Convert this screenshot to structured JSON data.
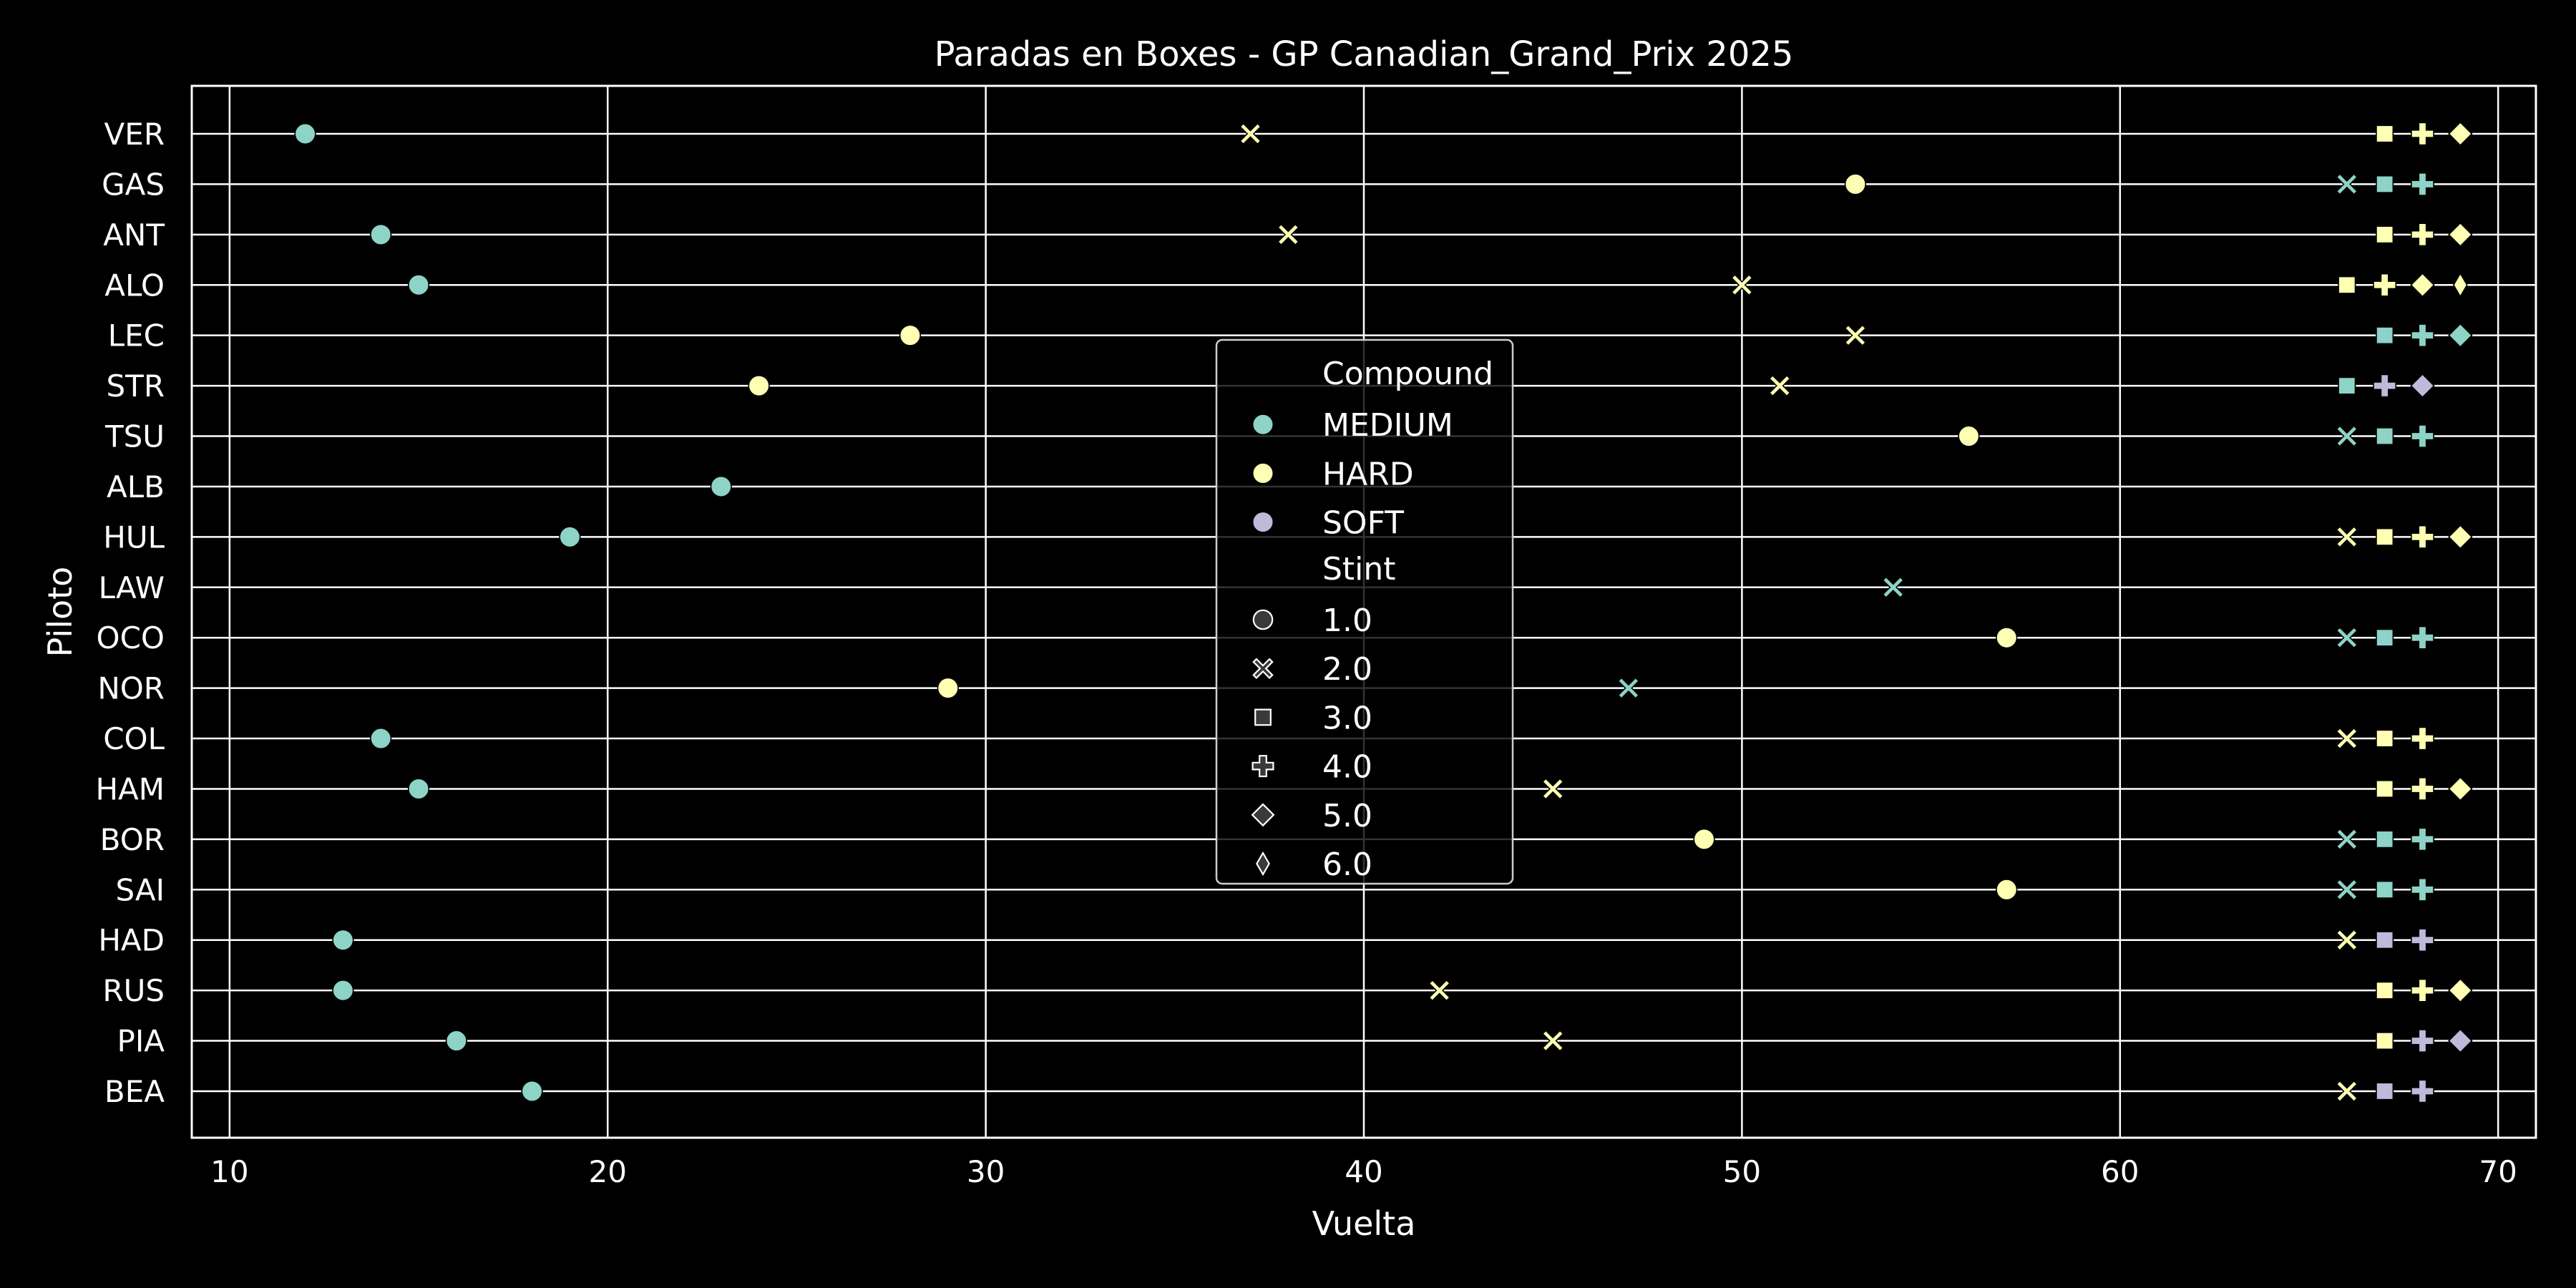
{
  "chart_data": {
    "type": "scatter",
    "title": "Paradas en Boxes - GP Canadian_Grand_Prix 2025",
    "xlabel": "Vuelta",
    "ylabel": "Piloto",
    "xlim": [
      9,
      71
    ],
    "xticks": [
      10,
      20,
      30,
      40,
      50,
      60,
      70
    ],
    "grid": true,
    "legend_position": "center",
    "drivers": [
      "VER",
      "GAS",
      "ANT",
      "ALO",
      "LEC",
      "STR",
      "TSU",
      "ALB",
      "HUL",
      "LAW",
      "OCO",
      "NOR",
      "COL",
      "HAM",
      "BOR",
      "SAI",
      "HAD",
      "RUS",
      "PIA",
      "BEA"
    ],
    "compound_colors": {
      "MEDIUM": "#8dd3c7",
      "HARD": "#ffffb3",
      "SOFT": "#bebada"
    },
    "stint_markers": {
      "1.0": "circle",
      "2.0": "x",
      "3.0": "square",
      "4.0": "plus",
      "5.0": "diamond",
      "6.0": "thin-diamond"
    },
    "legend": {
      "compound_title": "Compound",
      "compounds": [
        "MEDIUM",
        "HARD",
        "SOFT"
      ],
      "stint_title": "Stint",
      "stints": [
        "1.0",
        "2.0",
        "3.0",
        "4.0",
        "5.0",
        "6.0"
      ]
    },
    "points": [
      {
        "driver": "VER",
        "lap": 12,
        "compound": "MEDIUM",
        "stint": "1.0"
      },
      {
        "driver": "VER",
        "lap": 37,
        "compound": "HARD",
        "stint": "2.0"
      },
      {
        "driver": "VER",
        "lap": 67,
        "compound": "HARD",
        "stint": "3.0"
      },
      {
        "driver": "VER",
        "lap": 68,
        "compound": "HARD",
        "stint": "4.0"
      },
      {
        "driver": "VER",
        "lap": 69,
        "compound": "HARD",
        "stint": "5.0"
      },
      {
        "driver": "GAS",
        "lap": 53,
        "compound": "HARD",
        "stint": "1.0"
      },
      {
        "driver": "GAS",
        "lap": 66,
        "compound": "MEDIUM",
        "stint": "2.0"
      },
      {
        "driver": "GAS",
        "lap": 67,
        "compound": "MEDIUM",
        "stint": "3.0"
      },
      {
        "driver": "GAS",
        "lap": 68,
        "compound": "MEDIUM",
        "stint": "4.0"
      },
      {
        "driver": "ANT",
        "lap": 14,
        "compound": "MEDIUM",
        "stint": "1.0"
      },
      {
        "driver": "ANT",
        "lap": 38,
        "compound": "HARD",
        "stint": "2.0"
      },
      {
        "driver": "ANT",
        "lap": 67,
        "compound": "HARD",
        "stint": "3.0"
      },
      {
        "driver": "ANT",
        "lap": 68,
        "compound": "HARD",
        "stint": "4.0"
      },
      {
        "driver": "ANT",
        "lap": 69,
        "compound": "HARD",
        "stint": "5.0"
      },
      {
        "driver": "ALO",
        "lap": 15,
        "compound": "MEDIUM",
        "stint": "1.0"
      },
      {
        "driver": "ALO",
        "lap": 50,
        "compound": "HARD",
        "stint": "2.0"
      },
      {
        "driver": "ALO",
        "lap": 66,
        "compound": "HARD",
        "stint": "3.0"
      },
      {
        "driver": "ALO",
        "lap": 67,
        "compound": "HARD",
        "stint": "4.0"
      },
      {
        "driver": "ALO",
        "lap": 68,
        "compound": "HARD",
        "stint": "5.0"
      },
      {
        "driver": "ALO",
        "lap": 69,
        "compound": "HARD",
        "stint": "6.0"
      },
      {
        "driver": "LEC",
        "lap": 28,
        "compound": "HARD",
        "stint": "1.0"
      },
      {
        "driver": "LEC",
        "lap": 53,
        "compound": "HARD",
        "stint": "2.0"
      },
      {
        "driver": "LEC",
        "lap": 67,
        "compound": "MEDIUM",
        "stint": "3.0"
      },
      {
        "driver": "LEC",
        "lap": 68,
        "compound": "MEDIUM",
        "stint": "4.0"
      },
      {
        "driver": "LEC",
        "lap": 69,
        "compound": "MEDIUM",
        "stint": "5.0"
      },
      {
        "driver": "STR",
        "lap": 24,
        "compound": "HARD",
        "stint": "1.0"
      },
      {
        "driver": "STR",
        "lap": 51,
        "compound": "HARD",
        "stint": "2.0"
      },
      {
        "driver": "STR",
        "lap": 66,
        "compound": "MEDIUM",
        "stint": "3.0"
      },
      {
        "driver": "STR",
        "lap": 67,
        "compound": "SOFT",
        "stint": "4.0"
      },
      {
        "driver": "STR",
        "lap": 68,
        "compound": "SOFT",
        "stint": "5.0"
      },
      {
        "driver": "TSU",
        "lap": 56,
        "compound": "HARD",
        "stint": "1.0"
      },
      {
        "driver": "TSU",
        "lap": 66,
        "compound": "MEDIUM",
        "stint": "2.0"
      },
      {
        "driver": "TSU",
        "lap": 67,
        "compound": "MEDIUM",
        "stint": "3.0"
      },
      {
        "driver": "TSU",
        "lap": 68,
        "compound": "MEDIUM",
        "stint": "4.0"
      },
      {
        "driver": "ALB",
        "lap": 23,
        "compound": "MEDIUM",
        "stint": "1.0"
      },
      {
        "driver": "HUL",
        "lap": 19,
        "compound": "MEDIUM",
        "stint": "1.0"
      },
      {
        "driver": "HUL",
        "lap": 66,
        "compound": "HARD",
        "stint": "2.0"
      },
      {
        "driver": "HUL",
        "lap": 67,
        "compound": "HARD",
        "stint": "3.0"
      },
      {
        "driver": "HUL",
        "lap": 68,
        "compound": "HARD",
        "stint": "4.0"
      },
      {
        "driver": "HUL",
        "lap": 69,
        "compound": "HARD",
        "stint": "5.0"
      },
      {
        "driver": "LAW",
        "lap": 54,
        "compound": "MEDIUM",
        "stint": "2.0"
      },
      {
        "driver": "OCO",
        "lap": 57,
        "compound": "HARD",
        "stint": "1.0"
      },
      {
        "driver": "OCO",
        "lap": 66,
        "compound": "MEDIUM",
        "stint": "2.0"
      },
      {
        "driver": "OCO",
        "lap": 67,
        "compound": "MEDIUM",
        "stint": "3.0"
      },
      {
        "driver": "OCO",
        "lap": 68,
        "compound": "MEDIUM",
        "stint": "4.0"
      },
      {
        "driver": "NOR",
        "lap": 29,
        "compound": "HARD",
        "stint": "1.0"
      },
      {
        "driver": "NOR",
        "lap": 47,
        "compound": "MEDIUM",
        "stint": "2.0"
      },
      {
        "driver": "COL",
        "lap": 14,
        "compound": "MEDIUM",
        "stint": "1.0"
      },
      {
        "driver": "COL",
        "lap": 66,
        "compound": "HARD",
        "stint": "2.0"
      },
      {
        "driver": "COL",
        "lap": 67,
        "compound": "HARD",
        "stint": "3.0"
      },
      {
        "driver": "COL",
        "lap": 68,
        "compound": "HARD",
        "stint": "4.0"
      },
      {
        "driver": "HAM",
        "lap": 15,
        "compound": "MEDIUM",
        "stint": "1.0"
      },
      {
        "driver": "HAM",
        "lap": 45,
        "compound": "HARD",
        "stint": "2.0"
      },
      {
        "driver": "HAM",
        "lap": 67,
        "compound": "HARD",
        "stint": "3.0"
      },
      {
        "driver": "HAM",
        "lap": 68,
        "compound": "HARD",
        "stint": "4.0"
      },
      {
        "driver": "HAM",
        "lap": 69,
        "compound": "HARD",
        "stint": "5.0"
      },
      {
        "driver": "BOR",
        "lap": 49,
        "compound": "HARD",
        "stint": "1.0"
      },
      {
        "driver": "BOR",
        "lap": 66,
        "compound": "MEDIUM",
        "stint": "2.0"
      },
      {
        "driver": "BOR",
        "lap": 67,
        "compound": "MEDIUM",
        "stint": "3.0"
      },
      {
        "driver": "BOR",
        "lap": 68,
        "compound": "MEDIUM",
        "stint": "4.0"
      },
      {
        "driver": "SAI",
        "lap": 57,
        "compound": "HARD",
        "stint": "1.0"
      },
      {
        "driver": "SAI",
        "lap": 66,
        "compound": "MEDIUM",
        "stint": "2.0"
      },
      {
        "driver": "SAI",
        "lap": 67,
        "compound": "MEDIUM",
        "stint": "3.0"
      },
      {
        "driver": "SAI",
        "lap": 68,
        "compound": "MEDIUM",
        "stint": "4.0"
      },
      {
        "driver": "HAD",
        "lap": 13,
        "compound": "MEDIUM",
        "stint": "1.0"
      },
      {
        "driver": "HAD",
        "lap": 66,
        "compound": "HARD",
        "stint": "2.0"
      },
      {
        "driver": "HAD",
        "lap": 67,
        "compound": "SOFT",
        "stint": "3.0"
      },
      {
        "driver": "HAD",
        "lap": 68,
        "compound": "SOFT",
        "stint": "4.0"
      },
      {
        "driver": "RUS",
        "lap": 13,
        "compound": "MEDIUM",
        "stint": "1.0"
      },
      {
        "driver": "RUS",
        "lap": 42,
        "compound": "HARD",
        "stint": "2.0"
      },
      {
        "driver": "RUS",
        "lap": 67,
        "compound": "HARD",
        "stint": "3.0"
      },
      {
        "driver": "RUS",
        "lap": 68,
        "compound": "HARD",
        "stint": "4.0"
      },
      {
        "driver": "RUS",
        "lap": 69,
        "compound": "HARD",
        "stint": "5.0"
      },
      {
        "driver": "PIA",
        "lap": 16,
        "compound": "MEDIUM",
        "stint": "1.0"
      },
      {
        "driver": "PIA",
        "lap": 45,
        "compound": "HARD",
        "stint": "2.0"
      },
      {
        "driver": "PIA",
        "lap": 67,
        "compound": "HARD",
        "stint": "3.0"
      },
      {
        "driver": "PIA",
        "lap": 68,
        "compound": "SOFT",
        "stint": "4.0"
      },
      {
        "driver": "PIA",
        "lap": 69,
        "compound": "SOFT",
        "stint": "5.0"
      },
      {
        "driver": "BEA",
        "lap": 18,
        "compound": "MEDIUM",
        "stint": "1.0"
      },
      {
        "driver": "BEA",
        "lap": 66,
        "compound": "HARD",
        "stint": "2.0"
      },
      {
        "driver": "BEA",
        "lap": 67,
        "compound": "SOFT",
        "stint": "3.0"
      },
      {
        "driver": "BEA",
        "lap": 68,
        "compound": "SOFT",
        "stint": "4.0"
      }
    ]
  }
}
